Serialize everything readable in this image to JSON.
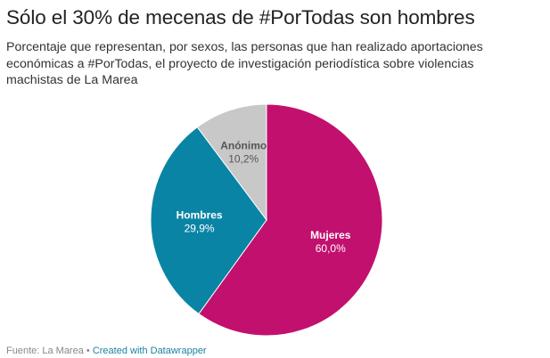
{
  "title": "Sólo el 30% de mecenas de #PorTodas son hombres",
  "subtitle": "Porcentaje que representan, por sexos, las personas que han realizado aportaciones económicas a #PorTodas, el proyecto de investigación periodística sobre violencias machistas de La Marea",
  "footer": {
    "source": "Fuente: La Marea",
    "separator": " • ",
    "credit": "Created with Datawrapper"
  },
  "chart_data": {
    "type": "pie",
    "title": "Sólo el 30% de mecenas de #PorTodas son hombres",
    "slices": [
      {
        "label": "Mujeres",
        "value": 60.0,
        "display": "60,0%",
        "color": "#c2106e",
        "text_color": "#ffffff"
      },
      {
        "label": "Hombres",
        "value": 29.9,
        "display": "29,9%",
        "color": "#0a84a4",
        "text_color": "#ffffff"
      },
      {
        "label": "Anónimo",
        "value": 10.2,
        "display": "10,2%",
        "color": "#c8c8c8",
        "text_color": "#555555"
      }
    ],
    "start": "12 o'clock",
    "direction": "clockwise"
  }
}
